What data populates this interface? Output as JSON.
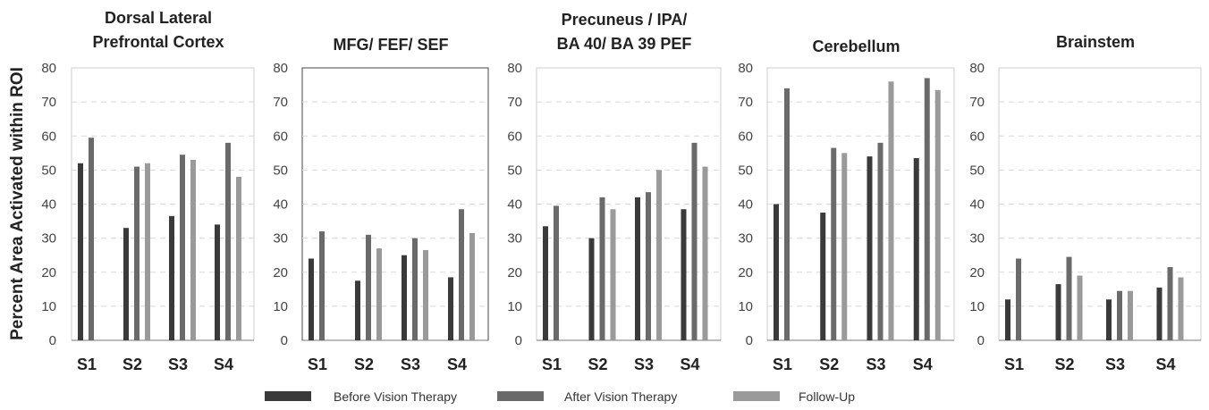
{
  "chart_data": {
    "type": "bar",
    "ylabel": "Percent Area Activated within ROI",
    "ylim": [
      0,
      80
    ],
    "yticks": [
      "0",
      "10",
      "20",
      "30",
      "40",
      "50",
      "60",
      "70",
      "80"
    ],
    "categories": [
      "S1",
      "S2",
      "S3",
      "S4"
    ],
    "series_names": [
      "Before Vision Therapy",
      "After Vision Therapy",
      "Follow-Up"
    ],
    "colors": [
      "#3a3a3a",
      "#6a6a6a",
      "#9a9a9a"
    ],
    "grid": true,
    "legend": "bottom",
    "panels": [
      {
        "title_lines": [
          "Dorsal Lateral",
          "Prefrontal Cortex"
        ],
        "before": [
          52,
          33,
          36.5,
          34
        ],
        "after": [
          59.5,
          51,
          54.5,
          58
        ],
        "followup": [
          null,
          52,
          53,
          48
        ]
      },
      {
        "title_lines": [
          "MFG/ FEF/ SEF"
        ],
        "before": [
          24,
          17.5,
          25,
          18.5
        ],
        "after": [
          32,
          31,
          30,
          38.5
        ],
        "followup": [
          null,
          27,
          26.5,
          31.5
        ]
      },
      {
        "title_lines": [
          "Precuneus / IPA/",
          "BA 40/ BA 39 PEF"
        ],
        "before": [
          33.5,
          30,
          42,
          38.5
        ],
        "after": [
          39.5,
          42,
          43.5,
          58
        ],
        "followup": [
          null,
          38.5,
          50,
          51
        ]
      },
      {
        "title_lines": [
          "Cerebellum"
        ],
        "before": [
          40,
          37.5,
          54,
          53.5
        ],
        "after": [
          74,
          56.5,
          58,
          77
        ],
        "followup": [
          null,
          55,
          76,
          73.5
        ]
      },
      {
        "title_lines": [
          "Brainstem"
        ],
        "before": [
          12,
          16.5,
          12,
          15.5
        ],
        "after": [
          24,
          24.5,
          14.5,
          21.5
        ],
        "followup": [
          null,
          19,
          14.5,
          18.5
        ]
      }
    ]
  }
}
